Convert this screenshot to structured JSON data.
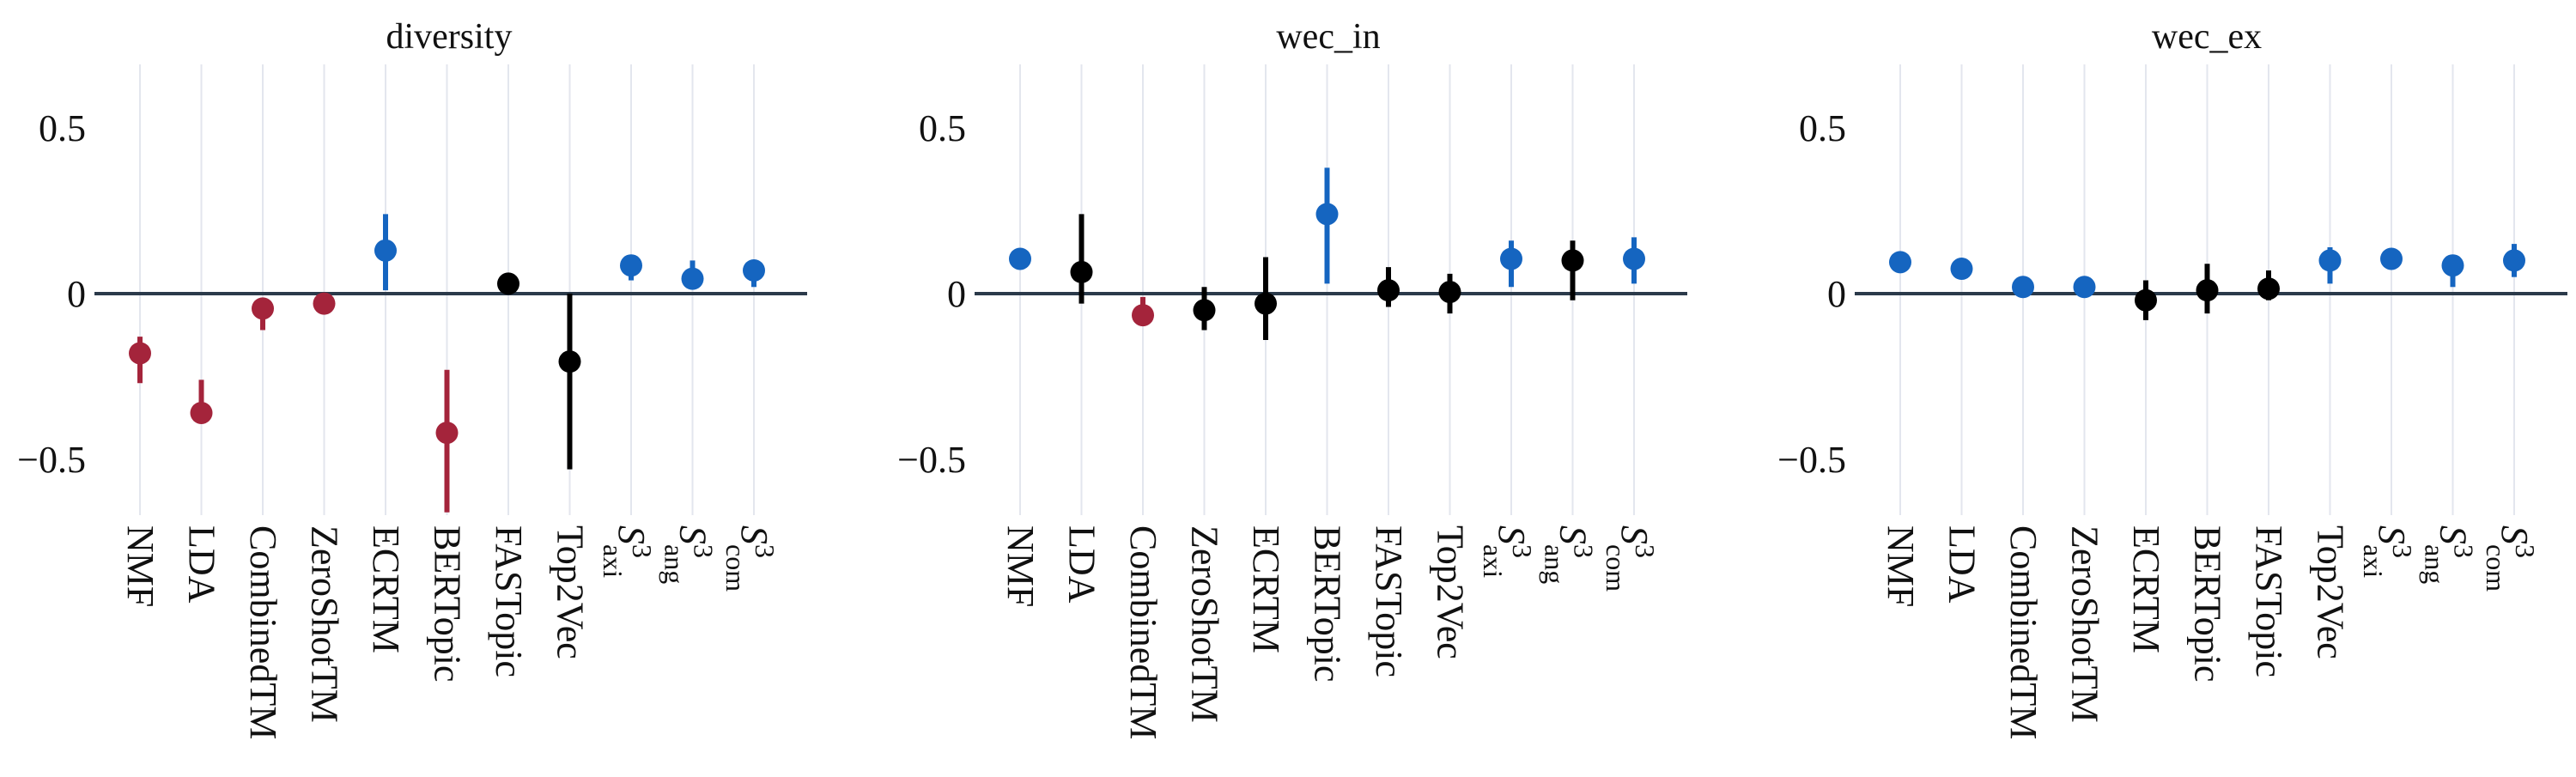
{
  "colors": {
    "better": "#1565c0",
    "worse": "#a4243b",
    "neutral": "#000000",
    "gridline": "#e3e6ee",
    "zeroline": "#2b3a4a"
  },
  "chart_data": [
    {
      "type": "scatter",
      "title": "diversity",
      "categories": [
        "NMF",
        "LDA",
        "CombinedTM",
        "ZeroShotTM",
        "ECRTM",
        "BERTopic",
        "FASTopic",
        "Top2Vec",
        "S³axi",
        "S³ang",
        "S³com"
      ],
      "y": [
        -0.18,
        -0.36,
        -0.045,
        -0.03,
        0.13,
        -0.42,
        0.03,
        -0.205,
        0.085,
        0.045,
        0.07
      ],
      "err_low": [
        -0.27,
        -0.37,
        -0.11,
        -0.03,
        0.01,
        -0.66,
        0.01,
        -0.53,
        0.04,
        0.02,
        0.02
      ],
      "err_high": [
        -0.13,
        -0.26,
        -0.03,
        -0.03,
        0.24,
        -0.23,
        0.06,
        0.0,
        0.1,
        0.1,
        0.1
      ],
      "status": [
        "worse",
        "worse",
        "worse",
        "worse",
        "better",
        "worse",
        "neutral",
        "neutral",
        "better",
        "better",
        "better"
      ],
      "yticks": [
        0.5,
        0,
        -0.5
      ],
      "ytick_labels": [
        "0.5",
        "0",
        "−0.5"
      ],
      "ylim": [
        -0.7,
        0.7
      ],
      "grid": "vertical"
    },
    {
      "type": "scatter",
      "title": "wec_in",
      "categories": [
        "NMF",
        "LDA",
        "CombinedTM",
        "ZeroShotTM",
        "ECRTM",
        "BERTopic",
        "FASTopic",
        "Top2Vec",
        "S³axi",
        "S³ang",
        "S³com"
      ],
      "y": [
        0.105,
        0.065,
        -0.065,
        -0.05,
        -0.03,
        0.24,
        0.01,
        0.005,
        0.105,
        0.1,
        0.105
      ],
      "err_low": [
        0.09,
        -0.03,
        -0.09,
        -0.11,
        -0.14,
        0.03,
        -0.04,
        -0.06,
        0.02,
        -0.02,
        0.03
      ],
      "err_high": [
        0.12,
        0.24,
        -0.01,
        0.02,
        0.11,
        0.38,
        0.08,
        0.06,
        0.16,
        0.16,
        0.17
      ],
      "status": [
        "better",
        "neutral",
        "worse",
        "neutral",
        "neutral",
        "better",
        "neutral",
        "neutral",
        "better",
        "neutral",
        "better"
      ],
      "yticks": [
        0.5,
        0,
        -0.5
      ],
      "ytick_labels": [
        "0.5",
        "0",
        "−0.5"
      ],
      "ylim": [
        -0.7,
        0.7
      ],
      "grid": "vertical"
    },
    {
      "type": "scatter",
      "title": "wec_ex",
      "categories": [
        "NMF",
        "LDA",
        "CombinedTM",
        "ZeroShotTM",
        "ECRTM",
        "BERTopic",
        "FASTopic",
        "Top2Vec",
        "S³axi",
        "S³ang",
        "S³com"
      ],
      "y": [
        0.095,
        0.075,
        0.02,
        0.02,
        -0.02,
        0.01,
        0.015,
        0.1,
        0.105,
        0.085,
        0.1
      ],
      "err_low": [
        0.09,
        0.07,
        0.01,
        0.01,
        -0.08,
        -0.06,
        -0.02,
        0.03,
        0.08,
        0.02,
        0.05
      ],
      "err_high": [
        0.1,
        0.08,
        0.03,
        0.03,
        0.04,
        0.09,
        0.07,
        0.14,
        0.13,
        0.1,
        0.15
      ],
      "status": [
        "better",
        "better",
        "better",
        "better",
        "neutral",
        "neutral",
        "neutral",
        "better",
        "better",
        "better",
        "better"
      ],
      "yticks": [
        0.5,
        0,
        -0.5
      ],
      "ytick_labels": [
        "0.5",
        "0",
        "−0.5"
      ],
      "ylim": [
        -0.7,
        0.7
      ],
      "grid": "vertical"
    }
  ]
}
